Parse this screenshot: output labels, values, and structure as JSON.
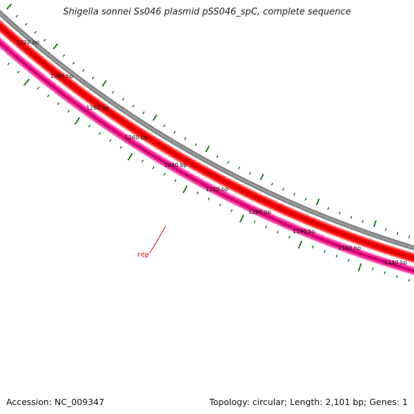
{
  "title": "Shigella sonnei Ss046 plasmid pSS046_spC, complete sequence",
  "footer": {
    "accession": "Accession: NC_009347",
    "summary": "Topology: circular; Length: 2,101 bp; Genes: 1"
  },
  "scale_labels": [
    "1320 bp",
    "1300 bp",
    "1280 bp",
    "1260 bp",
    "1240 bp",
    "1220 bp",
    "1200 bp",
    "1180 bp",
    "1160 bp",
    "1140 bp"
  ],
  "genes": [
    {
      "label": "rep"
    }
  ],
  "colors": {
    "backbone": "#808080",
    "cds_outer": "#ff0000",
    "cds_inner": "#d40000",
    "cds_light": "#ff6060",
    "gene_band": "#ff1e96",
    "gene_band_dark": "#c0006a",
    "gene_band_light": "#ff78bd",
    "tick": "#1e7a1e",
    "gene_label": "#dd0000"
  }
}
